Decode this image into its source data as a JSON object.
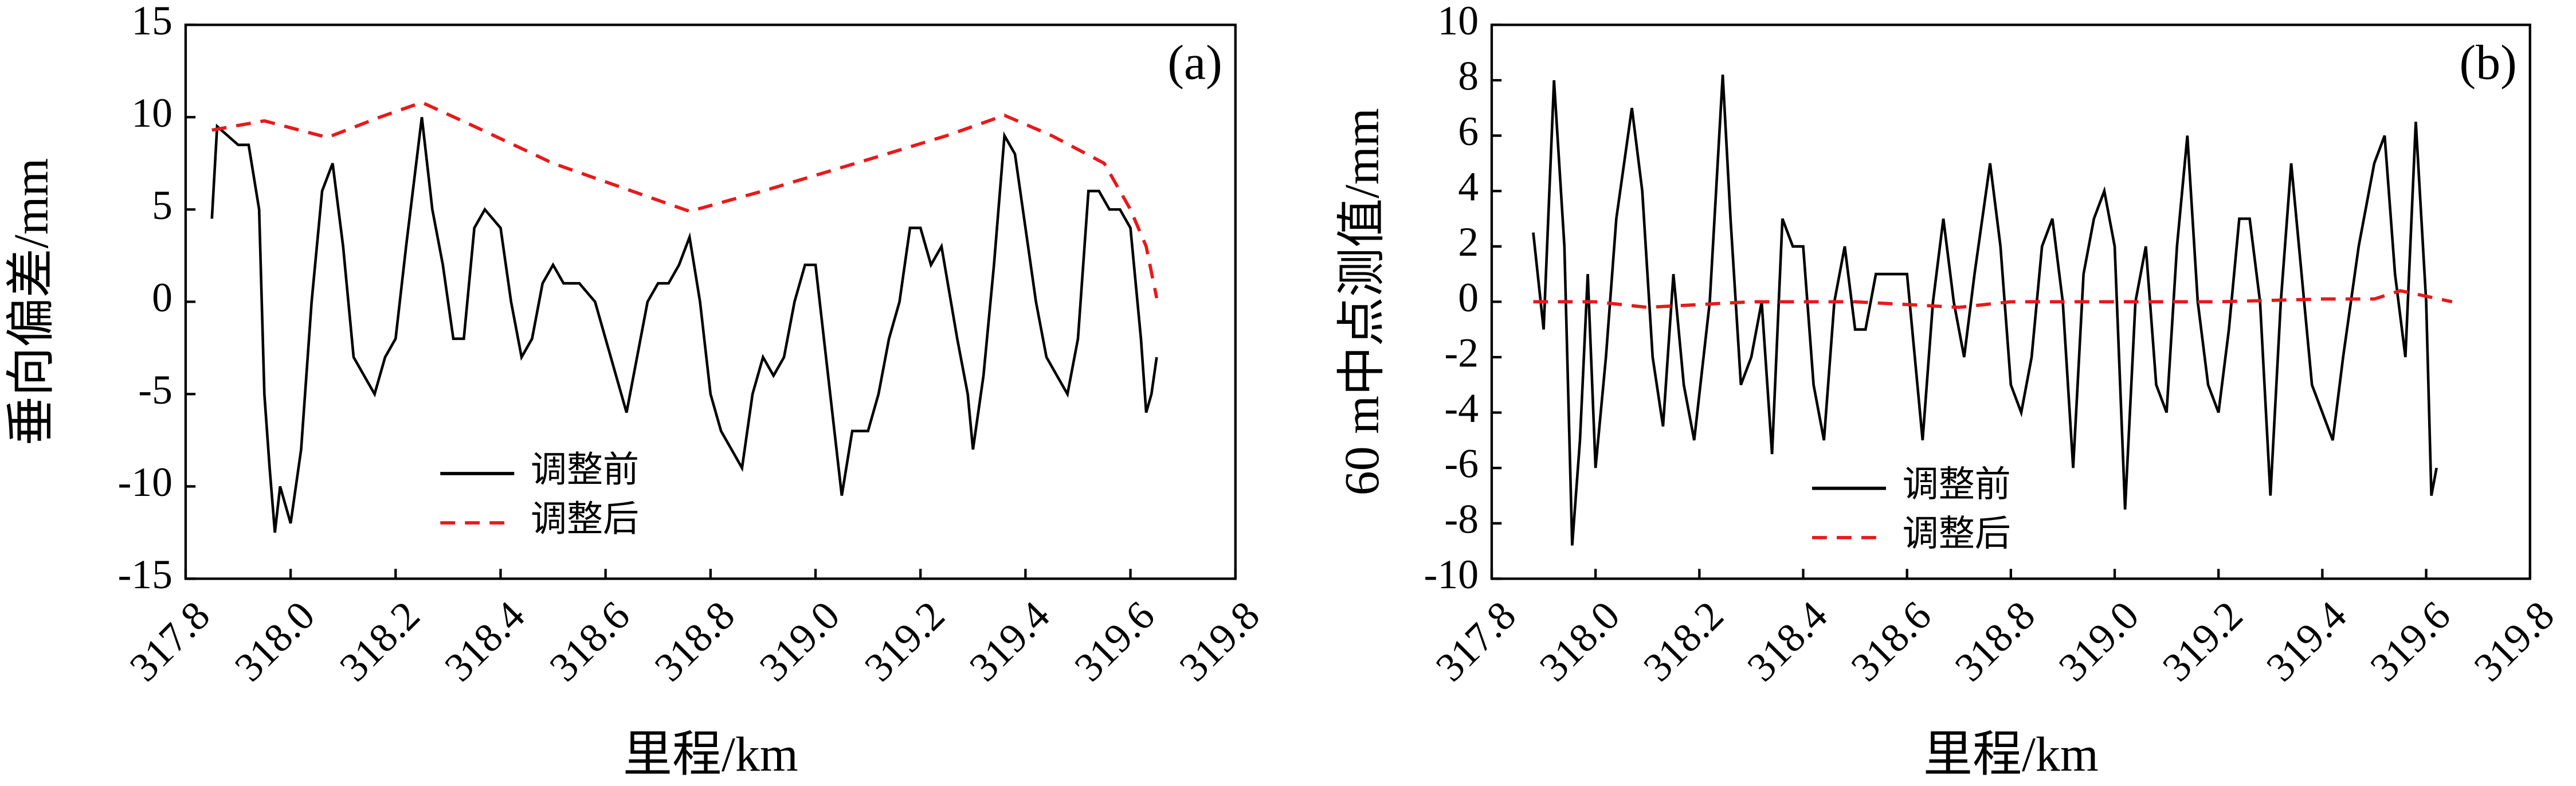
{
  "chart_data": [
    {
      "type": "line",
      "title": "(a)",
      "ylabel": "垂向偏差/mm",
      "xlabel": "里程/km",
      "xlim": [
        317.8,
        319.8
      ],
      "ylim": [
        -15,
        15
      ],
      "xticks": [
        317.8,
        {
          "value": 318.0,
          "label": "318.0"
        },
        318.2,
        318.4,
        318.6,
        318.8,
        {
          "value": 319.0,
          "label": "319.0"
        },
        319.2,
        319.4,
        319.6,
        319.8
      ],
      "yticks": [
        -15,
        -10,
        -5,
        0,
        5,
        10,
        15
      ],
      "legend": "lower center",
      "series": [
        {
          "name": "调整前",
          "color": "#000000",
          "dash": false,
          "x": [
            317.85,
            317.86,
            317.88,
            317.9,
            317.92,
            317.94,
            317.95,
            317.96,
            317.97,
            317.98,
            318.0,
            318.02,
            318.04,
            318.06,
            318.08,
            318.1,
            318.12,
            318.14,
            318.16,
            318.18,
            318.2,
            318.22,
            318.25,
            318.27,
            318.29,
            318.31,
            318.33,
            318.35,
            318.37,
            318.4,
            318.42,
            318.44,
            318.46,
            318.48,
            318.5,
            318.52,
            318.55,
            318.58,
            318.6,
            318.62,
            318.64,
            318.66,
            318.68,
            318.7,
            318.72,
            318.74,
            318.76,
            318.78,
            318.8,
            318.82,
            318.84,
            318.86,
            318.88,
            318.9,
            318.92,
            318.94,
            318.96,
            318.98,
            319.0,
            319.02,
            319.04,
            319.05,
            319.07,
            319.1,
            319.12,
            319.14,
            319.16,
            319.18,
            319.2,
            319.22,
            319.24,
            319.27,
            319.29,
            319.3,
            319.32,
            319.34,
            319.36,
            319.38,
            319.4,
            319.42,
            319.44,
            319.46,
            319.48,
            319.5,
            319.52,
            319.54,
            319.56,
            319.58,
            319.6,
            319.62,
            319.63,
            319.64,
            319.65
          ],
          "values": [
            4.5,
            9.5,
            9,
            8.5,
            8.5,
            5,
            -5,
            -9,
            -12.5,
            -10,
            -12,
            -8,
            0,
            6,
            7.5,
            3,
            -3,
            -4,
            -5,
            -3,
            -2,
            3,
            10,
            5,
            2,
            -2,
            -2,
            4,
            5,
            4,
            0,
            -3,
            -2,
            1,
            2,
            1,
            1,
            0,
            -2,
            -4,
            -6,
            -3,
            0,
            1,
            1,
            2,
            3.5,
            0,
            -5,
            -7,
            -8,
            -9,
            -5,
            -3,
            -4,
            -3,
            0,
            2,
            2,
            -3,
            -8,
            -10.5,
            -7,
            -7,
            -5,
            -2,
            0,
            4,
            4,
            2,
            3,
            -2,
            -5,
            -8,
            -4,
            2,
            9,
            8,
            4,
            0,
            -3,
            -4,
            -5,
            -2,
            6,
            6,
            5,
            5,
            4,
            -2,
            -6,
            -5,
            -3
          ]
        },
        {
          "name": "调整后",
          "color": "#e8191b",
          "dash": true,
          "x": [
            317.85,
            317.95,
            318.07,
            318.17,
            318.25,
            318.35,
            318.5,
            318.65,
            318.76,
            318.9,
            319.1,
            319.25,
            319.36,
            319.45,
            319.55,
            319.6,
            319.63,
            319.65
          ],
          "values": [
            9.3,
            9.8,
            8.9,
            10,
            10.8,
            9.5,
            7.5,
            6,
            4.9,
            6,
            7.7,
            9,
            10.1,
            9,
            7.5,
            5,
            3,
            0.2
          ]
        }
      ]
    },
    {
      "type": "line",
      "title": "(b)",
      "ylabel": "60 m中点测值/mm",
      "xlabel": "里程/km",
      "xlim": [
        317.8,
        319.8
      ],
      "ylim": [
        -10,
        10
      ],
      "xticks": [
        317.8,
        {
          "value": 318.0,
          "label": "318.0"
        },
        318.2,
        318.4,
        318.6,
        318.8,
        {
          "value": 319.0,
          "label": "319.0"
        },
        319.2,
        319.4,
        319.6,
        319.8
      ],
      "yticks": [
        -10,
        -8,
        -6,
        -4,
        -2,
        0,
        2,
        4,
        6,
        8,
        10
      ],
      "legend": "lower center",
      "series": [
        {
          "name": "调整前",
          "color": "#000000",
          "dash": false,
          "x": [
            317.88,
            317.9,
            317.92,
            317.94,
            317.955,
            317.97,
            317.985,
            318.0,
            318.02,
            318.04,
            318.07,
            318.09,
            318.11,
            318.13,
            318.15,
            318.17,
            318.19,
            318.22,
            318.245,
            318.26,
            318.28,
            318.3,
            318.32,
            318.34,
            318.36,
            318.38,
            318.4,
            318.42,
            318.44,
            318.46,
            318.48,
            318.5,
            318.52,
            318.54,
            318.57,
            318.6,
            318.63,
            318.65,
            318.67,
            318.69,
            318.71,
            318.73,
            318.76,
            318.78,
            318.8,
            318.82,
            318.84,
            318.86,
            318.88,
            318.9,
            318.92,
            318.94,
            318.96,
            318.98,
            319.0,
            319.02,
            319.04,
            319.06,
            319.08,
            319.1,
            319.12,
            319.14,
            319.16,
            319.18,
            319.2,
            319.22,
            319.24,
            319.26,
            319.28,
            319.3,
            319.32,
            319.34,
            319.36,
            319.38,
            319.4,
            319.42,
            319.44,
            319.47,
            319.5,
            319.52,
            319.54,
            319.56,
            319.58,
            319.6,
            319.61,
            319.62
          ],
          "values": [
            2.5,
            -1,
            8,
            2,
            -8.8,
            -5,
            1,
            -6,
            -2,
            3,
            7,
            4,
            -2,
            -4.5,
            1,
            -3,
            -5,
            0,
            8.2,
            3,
            -3,
            -2,
            0,
            -5.5,
            3,
            2,
            2,
            -3,
            -5,
            0,
            2,
            -1,
            -1,
            1,
            1,
            1,
            -5,
            0,
            3,
            0,
            -2,
            1,
            5,
            2,
            -3,
            -4,
            -2,
            2,
            3,
            0,
            -6,
            1,
            3,
            4,
            2,
            -7.5,
            0,
            2,
            -3,
            -4,
            2,
            6,
            0,
            -3,
            -4,
            -1,
            3,
            3,
            0,
            -7,
            0,
            5,
            1,
            -3,
            -4,
            -5,
            -2,
            2,
            5,
            6,
            1,
            -2,
            6.5,
            0,
            -7,
            -6
          ]
        },
        {
          "name": "调整后",
          "color": "#e8191b",
          "dash": true,
          "x": [
            317.88,
            318.0,
            318.1,
            318.3,
            318.5,
            318.7,
            318.8,
            319.0,
            319.2,
            319.4,
            319.5,
            319.55,
            319.6,
            319.65
          ],
          "values": [
            0,
            0,
            -0.2,
            0,
            0,
            -0.2,
            0,
            0,
            0,
            0.1,
            0.1,
            0.4,
            0.2,
            0
          ]
        }
      ]
    }
  ]
}
